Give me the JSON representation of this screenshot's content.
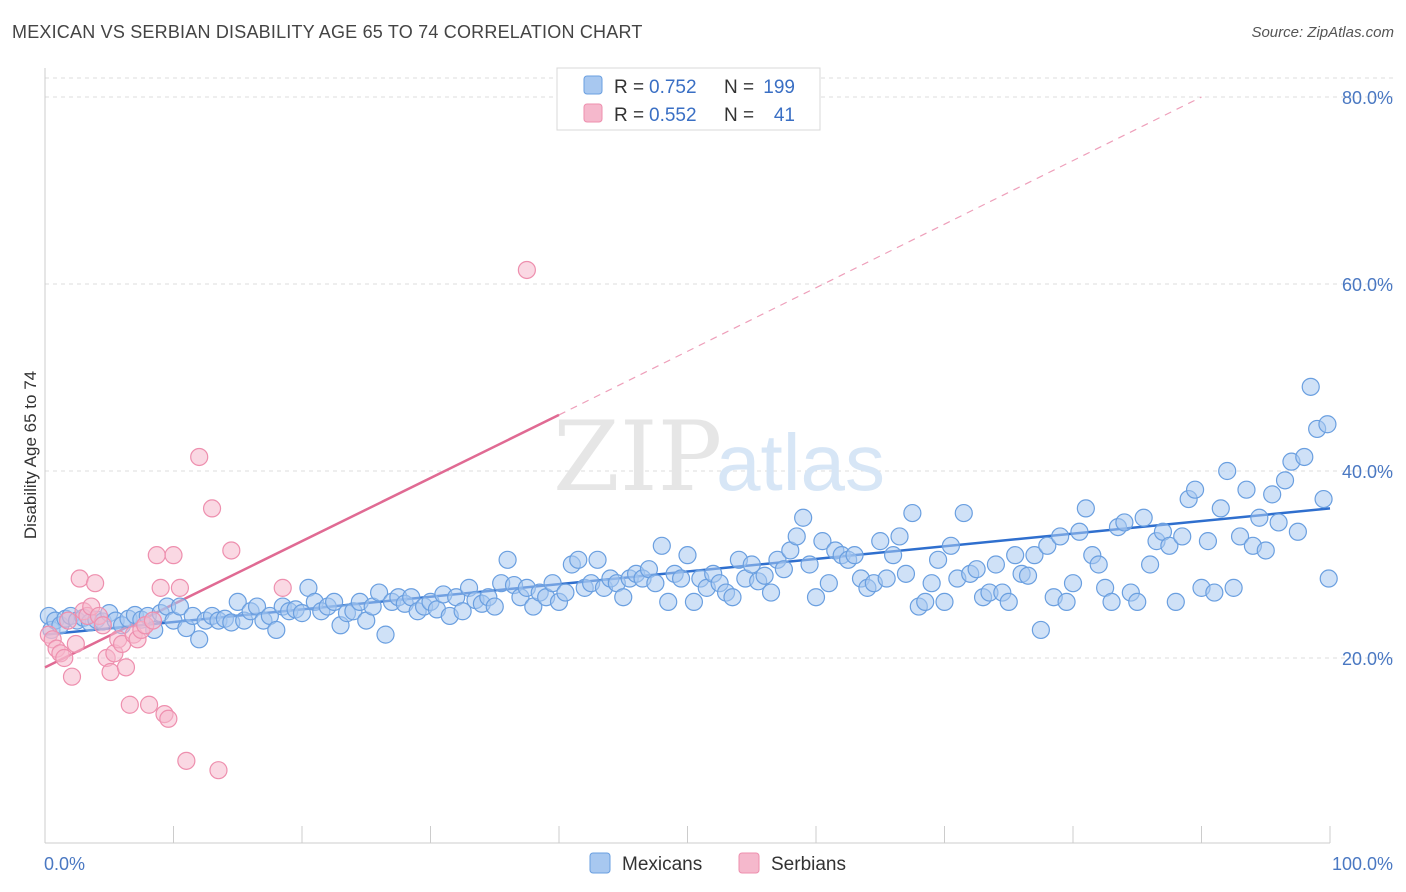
{
  "title": "MEXICAN VS SERBIAN DISABILITY AGE 65 TO 74 CORRELATION CHART",
  "source": "Source: ZipAtlas.com",
  "watermark": {
    "zip": "ZIP",
    "atlas": "atlas"
  },
  "legend_top": [
    {
      "r_label": "R =",
      "r_value": "0.752",
      "n_label": "N =",
      "n_value": "199",
      "color": "#a8c8f0"
    },
    {
      "r_label": "R =",
      "r_value": "0.552",
      "n_label": "N =",
      "n_value": "41",
      "color": "#f5b8cc"
    }
  ],
  "chart_data": {
    "type": "scatter",
    "title": "MEXICAN VS SERBIAN DISABILITY AGE 65 TO 74 CORRELATION CHART",
    "xlabel": "",
    "ylabel": "Disability Age 65 to 74",
    "xlim": [
      0,
      100
    ],
    "ylim": [
      0,
      82
    ],
    "x_tick_labels": [
      "0.0%",
      "100.0%"
    ],
    "y_ticks": [
      20,
      40,
      60,
      80
    ],
    "y_tick_labels": [
      "20.0%",
      "40.0%",
      "60.0%",
      "80.0%"
    ],
    "grid": true,
    "legend_position": "bottom",
    "series": [
      {
        "name": "Mexicans",
        "color": "#6a9fe0",
        "fill": "#a8c8f0",
        "trend": {
          "x": [
            0,
            100
          ],
          "y": [
            22.5,
            36.0
          ]
        },
        "points": [
          [
            0.3,
            24.5
          ],
          [
            0.5,
            23.0
          ],
          [
            0.8,
            24.0
          ],
          [
            1.2,
            23.5
          ],
          [
            1.6,
            24.2
          ],
          [
            2.0,
            24.5
          ],
          [
            2.5,
            24.0
          ],
          [
            3.0,
            24.3
          ],
          [
            3.5,
            23.8
          ],
          [
            4.0,
            24.1
          ],
          [
            4.5,
            23.9
          ],
          [
            5.0,
            24.8
          ],
          [
            5.5,
            24.0
          ],
          [
            6.0,
            23.5
          ],
          [
            6.5,
            24.2
          ],
          [
            7.0,
            24.6
          ],
          [
            7.5,
            24.1
          ],
          [
            8.0,
            24.5
          ],
          [
            8.5,
            23.0
          ],
          [
            9.0,
            24.8
          ],
          [
            9.5,
            25.5
          ],
          [
            10.0,
            24.0
          ],
          [
            10.5,
            25.5
          ],
          [
            11.0,
            23.2
          ],
          [
            11.5,
            24.5
          ],
          [
            12.0,
            22.0
          ],
          [
            12.5,
            24.0
          ],
          [
            13.0,
            24.5
          ],
          [
            13.5,
            24.0
          ],
          [
            14.0,
            24.2
          ],
          [
            14.5,
            23.8
          ],
          [
            15.0,
            26.0
          ],
          [
            15.5,
            24.0
          ],
          [
            16.0,
            25.0
          ],
          [
            16.5,
            25.5
          ],
          [
            17.0,
            24.0
          ],
          [
            17.5,
            24.5
          ],
          [
            18.0,
            23.0
          ],
          [
            18.5,
            25.5
          ],
          [
            19.0,
            25.0
          ],
          [
            19.5,
            25.2
          ],
          [
            20.0,
            24.8
          ],
          [
            20.5,
            27.5
          ],
          [
            21.0,
            26.0
          ],
          [
            21.5,
            25.0
          ],
          [
            22.0,
            25.5
          ],
          [
            22.5,
            26.0
          ],
          [
            23.0,
            23.5
          ],
          [
            23.5,
            24.8
          ],
          [
            24.0,
            25.0
          ],
          [
            24.5,
            26.0
          ],
          [
            25.0,
            24.0
          ],
          [
            25.5,
            25.5
          ],
          [
            26.0,
            27.0
          ],
          [
            26.5,
            22.5
          ],
          [
            27.0,
            26.0
          ],
          [
            27.5,
            26.5
          ],
          [
            28.0,
            25.8
          ],
          [
            28.5,
            26.5
          ],
          [
            29.0,
            25.0
          ],
          [
            29.5,
            25.5
          ],
          [
            30.0,
            26.0
          ],
          [
            30.5,
            25.2
          ],
          [
            31.0,
            26.8
          ],
          [
            31.5,
            24.5
          ],
          [
            32.0,
            26.5
          ],
          [
            32.5,
            25.0
          ],
          [
            33.0,
            27.5
          ],
          [
            33.5,
            26.2
          ],
          [
            34.0,
            25.8
          ],
          [
            34.5,
            26.5
          ],
          [
            35.0,
            25.5
          ],
          [
            35.5,
            28.0
          ],
          [
            36.0,
            30.5
          ],
          [
            36.5,
            27.8
          ],
          [
            37.0,
            26.5
          ],
          [
            37.5,
            27.5
          ],
          [
            38.0,
            25.5
          ],
          [
            38.5,
            27.0
          ],
          [
            39.0,
            26.5
          ],
          [
            39.5,
            28.0
          ],
          [
            40.0,
            26.0
          ],
          [
            40.5,
            27.0
          ],
          [
            41.0,
            30.0
          ],
          [
            41.5,
            30.5
          ],
          [
            42.0,
            27.5
          ],
          [
            42.5,
            28.0
          ],
          [
            43.0,
            30.5
          ],
          [
            43.5,
            27.5
          ],
          [
            44.0,
            28.5
          ],
          [
            44.5,
            28.0
          ],
          [
            45.0,
            26.5
          ],
          [
            45.5,
            28.5
          ],
          [
            46.0,
            29.0
          ],
          [
            46.5,
            28.5
          ],
          [
            47.0,
            29.5
          ],
          [
            47.5,
            28.0
          ],
          [
            48.0,
            32.0
          ],
          [
            48.5,
            26.0
          ],
          [
            49.0,
            29.0
          ],
          [
            49.5,
            28.5
          ],
          [
            50.0,
            31.0
          ],
          [
            50.5,
            26.0
          ],
          [
            51.0,
            28.5
          ],
          [
            51.5,
            27.5
          ],
          [
            52.0,
            29.0
          ],
          [
            52.5,
            28.0
          ],
          [
            53.0,
            27.0
          ],
          [
            53.5,
            26.5
          ],
          [
            54.0,
            30.5
          ],
          [
            54.5,
            28.5
          ],
          [
            55.0,
            30.0
          ],
          [
            55.5,
            28.2
          ],
          [
            56.0,
            28.8
          ],
          [
            56.5,
            27.0
          ],
          [
            57.0,
            30.5
          ],
          [
            57.5,
            29.5
          ],
          [
            58.0,
            31.5
          ],
          [
            58.5,
            33.0
          ],
          [
            59.0,
            35.0
          ],
          [
            59.5,
            30.0
          ],
          [
            60.0,
            26.5
          ],
          [
            60.5,
            32.5
          ],
          [
            61.0,
            28.0
          ],
          [
            61.5,
            31.5
          ],
          [
            62.0,
            31.0
          ],
          [
            62.5,
            30.5
          ],
          [
            63.0,
            31.0
          ],
          [
            63.5,
            28.5
          ],
          [
            64.0,
            27.5
          ],
          [
            64.5,
            28.0
          ],
          [
            65.0,
            32.5
          ],
          [
            65.5,
            28.5
          ],
          [
            66.0,
            31.0
          ],
          [
            66.5,
            33.0
          ],
          [
            67.0,
            29.0
          ],
          [
            67.5,
            35.5
          ],
          [
            68.0,
            25.5
          ],
          [
            68.5,
            26.0
          ],
          [
            69.0,
            28.0
          ],
          [
            69.5,
            30.5
          ],
          [
            70.0,
            26.0
          ],
          [
            70.5,
            32.0
          ],
          [
            71.0,
            28.5
          ],
          [
            71.5,
            35.5
          ],
          [
            72.0,
            29.0
          ],
          [
            72.5,
            29.5
          ],
          [
            73.0,
            26.5
          ],
          [
            73.5,
            27.0
          ],
          [
            74.0,
            30.0
          ],
          [
            74.5,
            27.0
          ],
          [
            75.0,
            26.0
          ],
          [
            75.5,
            31.0
          ],
          [
            76.0,
            29.0
          ],
          [
            76.5,
            28.8
          ],
          [
            77.0,
            31.0
          ],
          [
            77.5,
            23.0
          ],
          [
            78.0,
            32.0
          ],
          [
            78.5,
            26.5
          ],
          [
            79.0,
            33.0
          ],
          [
            79.5,
            26.0
          ],
          [
            80.0,
            28.0
          ],
          [
            80.5,
            33.5
          ],
          [
            81.0,
            36.0
          ],
          [
            81.5,
            31.0
          ],
          [
            82.0,
            30.0
          ],
          [
            82.5,
            27.5
          ],
          [
            83.0,
            26.0
          ],
          [
            83.5,
            34.0
          ],
          [
            84.0,
            34.5
          ],
          [
            84.5,
            27.0
          ],
          [
            85.0,
            26.0
          ],
          [
            85.5,
            35.0
          ],
          [
            86.0,
            30.0
          ],
          [
            86.5,
            32.5
          ],
          [
            87.0,
            33.5
          ],
          [
            87.5,
            32.0
          ],
          [
            88.0,
            26.0
          ],
          [
            88.5,
            33.0
          ],
          [
            89.0,
            37.0
          ],
          [
            89.5,
            38.0
          ],
          [
            90.0,
            27.5
          ],
          [
            90.5,
            32.5
          ],
          [
            91.0,
            27.0
          ],
          [
            91.5,
            36.0
          ],
          [
            92.0,
            40.0
          ],
          [
            92.5,
            27.5
          ],
          [
            93.0,
            33.0
          ],
          [
            93.5,
            38.0
          ],
          [
            94.0,
            32.0
          ],
          [
            94.5,
            35.0
          ],
          [
            95.0,
            31.5
          ],
          [
            95.5,
            37.5
          ],
          [
            96.0,
            34.5
          ],
          [
            96.5,
            39.0
          ],
          [
            97.0,
            41.0
          ],
          [
            97.5,
            33.5
          ],
          [
            98.0,
            41.5
          ],
          [
            98.5,
            49.0
          ],
          [
            99.0,
            44.5
          ],
          [
            99.5,
            37.0
          ],
          [
            99.8,
            45.0
          ],
          [
            99.9,
            28.5
          ]
        ]
      },
      {
        "name": "Serbians",
        "color": "#ee8fae",
        "fill": "#f5b8cc",
        "trend": {
          "x": [
            0,
            40
          ],
          "y": [
            19.0,
            46.0
          ]
        },
        "trend_extended": {
          "x": [
            40,
            90
          ],
          "y": [
            46.0,
            80.0
          ]
        },
        "points": [
          [
            0.3,
            22.5
          ],
          [
            0.6,
            22.0
          ],
          [
            0.9,
            21.0
          ],
          [
            1.2,
            20.5
          ],
          [
            1.5,
            20.0
          ],
          [
            1.8,
            24.0
          ],
          [
            2.1,
            18.0
          ],
          [
            2.4,
            21.5
          ],
          [
            2.7,
            28.5
          ],
          [
            3.0,
            25.0
          ],
          [
            3.3,
            24.5
          ],
          [
            3.6,
            25.5
          ],
          [
            3.9,
            28.0
          ],
          [
            4.2,
            24.5
          ],
          [
            4.5,
            23.5
          ],
          [
            4.8,
            20.0
          ],
          [
            5.1,
            18.5
          ],
          [
            5.4,
            20.5
          ],
          [
            5.7,
            22.0
          ],
          [
            6.0,
            21.5
          ],
          [
            6.3,
            19.0
          ],
          [
            6.6,
            15.0
          ],
          [
            6.9,
            22.5
          ],
          [
            7.2,
            22.0
          ],
          [
            7.5,
            23.0
          ],
          [
            7.8,
            23.5
          ],
          [
            8.1,
            15.0
          ],
          [
            8.4,
            24.0
          ],
          [
            8.7,
            31.0
          ],
          [
            9.0,
            27.5
          ],
          [
            9.3,
            14.0
          ],
          [
            9.6,
            13.5
          ],
          [
            10.0,
            31.0
          ],
          [
            10.5,
            27.5
          ],
          [
            11.0,
            9.0
          ],
          [
            12.0,
            41.5
          ],
          [
            13.0,
            36.0
          ],
          [
            13.5,
            8.0
          ],
          [
            14.5,
            31.5
          ],
          [
            18.5,
            27.5
          ],
          [
            37.5,
            61.5
          ]
        ]
      }
    ]
  }
}
